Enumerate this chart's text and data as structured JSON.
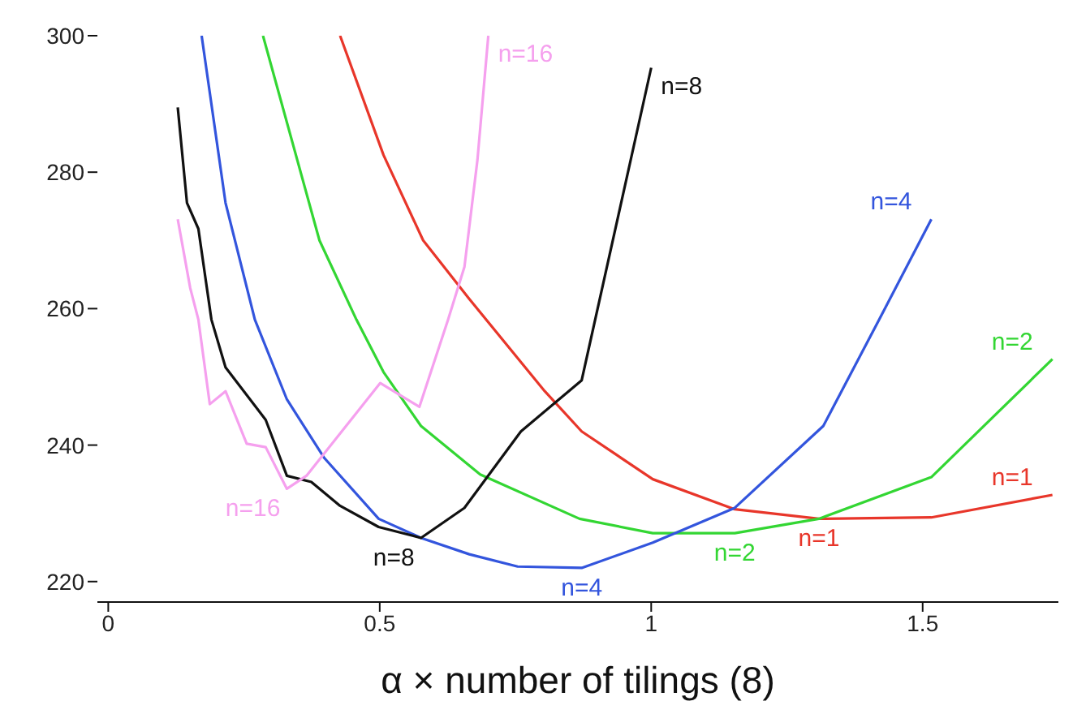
{
  "chart_data": {
    "type": "line",
    "xlabel": "α × number of tilings (8)",
    "xlim": [
      -0.02,
      1.75
    ],
    "xticks": [
      0,
      0.5,
      1,
      1.5
    ],
    "ylim": [
      217,
      300
    ],
    "yticks": [
      220,
      240,
      260,
      280,
      300
    ],
    "grid": false,
    "legend": false,
    "marker": "none",
    "line_style": "solid",
    "series": [
      {
        "name": "n=1",
        "color": "#e8362a",
        "x": [
          0.427,
          0.507,
          0.58,
          0.665,
          0.804,
          0.872,
          1.003,
          1.154,
          1.309,
          1.516,
          1.739
        ],
        "values": [
          300,
          282.5,
          270,
          261.4,
          247.9,
          242,
          235,
          230.6,
          229.2,
          229.4,
          232.7
        ]
      },
      {
        "name": "n=2",
        "color": "#33d633",
        "x": [
          0.285,
          0.389,
          0.457,
          0.507,
          0.576,
          0.685,
          0.868,
          1.003,
          1.154,
          1.309,
          1.516,
          1.739
        ],
        "values": [
          300,
          270,
          258.4,
          250.7,
          242.8,
          235.7,
          229.2,
          227.1,
          227.1,
          229.2,
          235.3,
          252.6
        ]
      },
      {
        "name": "n=4",
        "color": "#3355dd",
        "x": [
          0.172,
          0.216,
          0.27,
          0.329,
          0.398,
          0.498,
          0.576,
          0.665,
          0.754,
          0.872,
          1.003,
          1.154,
          1.317,
          1.42,
          1.516
        ],
        "values": [
          300,
          275.5,
          258.4,
          246.7,
          238.1,
          229.2,
          226.4,
          224,
          222.2,
          222,
          225.7,
          230.8,
          242.8,
          258.4,
          273.1
        ]
      },
      {
        "name": "n=8",
        "color": "#111111",
        "x": [
          0.128,
          0.145,
          0.166,
          0.19,
          0.216,
          0.29,
          0.329,
          0.374,
          0.427,
          0.498,
          0.576,
          0.656,
          0.76,
          0.872,
          1.0
        ],
        "values": [
          289.5,
          275.5,
          271.7,
          258.4,
          251.4,
          243.7,
          235.5,
          234.6,
          231.1,
          228,
          226.4,
          230.8,
          242,
          249.5,
          295.3
        ]
      },
      {
        "name": "n=16",
        "color": "#f5a0ee",
        "x": [
          0.128,
          0.151,
          0.166,
          0.187,
          0.216,
          0.255,
          0.29,
          0.329,
          0.365,
          0.501,
          0.573,
          0.626,
          0.656,
          0.68,
          0.7
        ],
        "values": [
          273.1,
          263,
          258.4,
          246,
          247.9,
          240.2,
          239.7,
          233.6,
          235.5,
          249.1,
          245.6,
          258.4,
          266.1,
          281.8,
          300
        ]
      }
    ]
  }
}
